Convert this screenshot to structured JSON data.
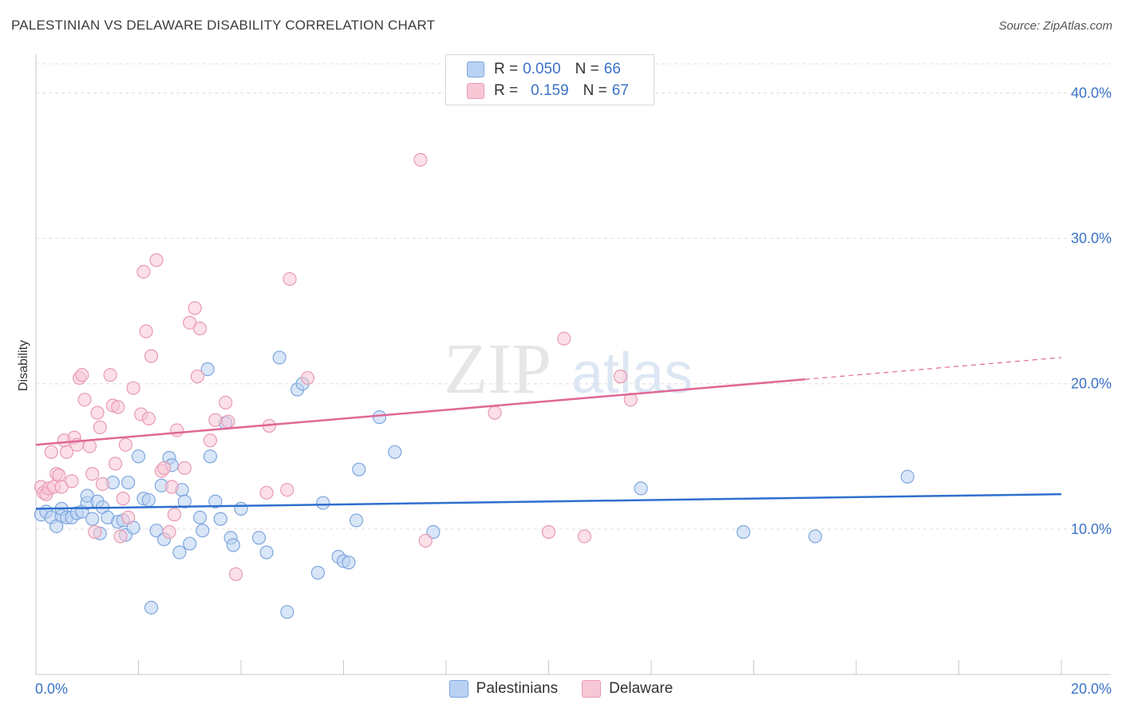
{
  "title": "PALESTINIAN VS DELAWARE DISABILITY CORRELATION CHART",
  "source": "Source: ZipAtlas.com",
  "watermark": {
    "zip": "ZIP",
    "atlas": "atlas"
  },
  "colors": {
    "blue": "#3a73c6",
    "blue_fill": "#b9d2f3",
    "blue_stroke": "#7ea6dd",
    "blue_line": "#2f6fce",
    "pink": "#e06796",
    "pink_fill": "#f7c7d6",
    "pink_stroke": "#e89ab5"
  },
  "legend": {
    "rows": [
      {
        "r_label": "R = ",
        "r_value": "0.050",
        "n_label": "N = ",
        "n_value": "66"
      },
      {
        "r_label": "R = ",
        "r_value": "0.159",
        "n_label": "N = ",
        "n_value": "67"
      }
    ]
  },
  "bottom_legend": [
    "Palestinians",
    "Delaware"
  ],
  "chart_data": {
    "type": "scatter",
    "title": "PALESTINIAN VS DELAWARE DISABILITY CORRELATION CHART",
    "xlabel": "",
    "ylabel": "Disability",
    "xlim": [
      0,
      20
    ],
    "ylim": [
      0,
      42
    ],
    "x_tick_labels": [
      "0.0%",
      "20.0%"
    ],
    "y_ticks": [
      10,
      20,
      30,
      40
    ],
    "y_tick_labels": [
      "10.0%",
      "20.0%",
      "30.0%",
      "40.0%"
    ],
    "series": [
      {
        "name": "Palestinians",
        "r": 0.05,
        "n": 66,
        "trend": {
          "x0": 0,
          "y0": 11.4,
          "x1": 20,
          "y1": 12.4,
          "dash_from": null
        },
        "points": [
          [
            0.1,
            11.0
          ],
          [
            0.2,
            11.2
          ],
          [
            0.3,
            10.8
          ],
          [
            0.4,
            10.2
          ],
          [
            0.5,
            10.9
          ],
          [
            0.5,
            11.4
          ],
          [
            0.6,
            10.8
          ],
          [
            0.7,
            10.8
          ],
          [
            0.8,
            11.1
          ],
          [
            0.9,
            11.2
          ],
          [
            1.0,
            11.8
          ],
          [
            1.0,
            12.3
          ],
          [
            1.1,
            10.7
          ],
          [
            1.2,
            11.9
          ],
          [
            1.25,
            9.7
          ],
          [
            1.3,
            11.5
          ],
          [
            1.4,
            10.8
          ],
          [
            1.5,
            13.2
          ],
          [
            1.6,
            10.5
          ],
          [
            1.7,
            10.6
          ],
          [
            1.75,
            9.6
          ],
          [
            1.8,
            13.2
          ],
          [
            1.9,
            10.1
          ],
          [
            2.0,
            15.0
          ],
          [
            2.1,
            12.1
          ],
          [
            2.2,
            12.0
          ],
          [
            2.25,
            4.6
          ],
          [
            2.35,
            9.9
          ],
          [
            2.45,
            13.0
          ],
          [
            2.5,
            9.3
          ],
          [
            2.6,
            14.9
          ],
          [
            2.65,
            14.4
          ],
          [
            2.8,
            8.4
          ],
          [
            2.85,
            12.7
          ],
          [
            2.9,
            11.9
          ],
          [
            3.0,
            9.0
          ],
          [
            3.2,
            10.8
          ],
          [
            3.25,
            9.9
          ],
          [
            3.35,
            21.0
          ],
          [
            3.4,
            15.0
          ],
          [
            3.5,
            11.9
          ],
          [
            3.6,
            10.7
          ],
          [
            3.7,
            17.3
          ],
          [
            3.8,
            9.4
          ],
          [
            3.85,
            8.9
          ],
          [
            4.0,
            11.4
          ],
          [
            4.35,
            9.4
          ],
          [
            4.5,
            8.4
          ],
          [
            4.75,
            21.8
          ],
          [
            4.9,
            4.3
          ],
          [
            5.1,
            19.6
          ],
          [
            5.2,
            20.0
          ],
          [
            5.5,
            7.0
          ],
          [
            5.6,
            11.8
          ],
          [
            5.9,
            8.1
          ],
          [
            6.0,
            7.8
          ],
          [
            6.1,
            7.7
          ],
          [
            6.25,
            10.6
          ],
          [
            6.3,
            14.1
          ],
          [
            6.7,
            17.7
          ],
          [
            7.0,
            15.3
          ],
          [
            7.75,
            9.8
          ],
          [
            11.8,
            12.8
          ],
          [
            13.8,
            9.8
          ],
          [
            15.2,
            9.5
          ],
          [
            17.0,
            13.6
          ]
        ]
      },
      {
        "name": "Delaware",
        "r": 0.159,
        "n": 67,
        "trend": {
          "x0": 0,
          "y0": 15.8,
          "x1": 20,
          "y1": 21.8,
          "dash_from": 15.0
        },
        "points": [
          [
            0.1,
            12.9
          ],
          [
            0.15,
            12.5
          ],
          [
            0.2,
            12.4
          ],
          [
            0.25,
            12.8
          ],
          [
            0.3,
            15.3
          ],
          [
            0.35,
            12.9
          ],
          [
            0.4,
            13.8
          ],
          [
            0.45,
            13.7
          ],
          [
            0.5,
            12.9
          ],
          [
            0.55,
            16.1
          ],
          [
            0.6,
            15.3
          ],
          [
            0.7,
            13.3
          ],
          [
            0.75,
            16.3
          ],
          [
            0.8,
            15.8
          ],
          [
            0.85,
            20.4
          ],
          [
            0.9,
            20.6
          ],
          [
            0.95,
            18.9
          ],
          [
            1.05,
            15.7
          ],
          [
            1.1,
            13.8
          ],
          [
            1.15,
            9.8
          ],
          [
            1.2,
            18.0
          ],
          [
            1.25,
            17.0
          ],
          [
            1.3,
            13.1
          ],
          [
            1.45,
            20.6
          ],
          [
            1.5,
            18.5
          ],
          [
            1.55,
            14.5
          ],
          [
            1.6,
            18.4
          ],
          [
            1.65,
            9.5
          ],
          [
            1.7,
            12.1
          ],
          [
            1.75,
            15.8
          ],
          [
            1.8,
            10.8
          ],
          [
            1.9,
            19.7
          ],
          [
            2.05,
            17.9
          ],
          [
            2.1,
            27.7
          ],
          [
            2.15,
            23.6
          ],
          [
            2.2,
            17.6
          ],
          [
            2.25,
            21.9
          ],
          [
            2.35,
            28.5
          ],
          [
            2.45,
            14.0
          ],
          [
            2.5,
            14.2
          ],
          [
            2.6,
            9.8
          ],
          [
            2.65,
            12.9
          ],
          [
            2.7,
            11.0
          ],
          [
            2.75,
            16.8
          ],
          [
            2.9,
            14.2
          ],
          [
            3.0,
            24.2
          ],
          [
            3.1,
            25.2
          ],
          [
            3.15,
            20.5
          ],
          [
            3.2,
            23.8
          ],
          [
            3.4,
            16.1
          ],
          [
            3.5,
            17.5
          ],
          [
            3.7,
            18.7
          ],
          [
            3.75,
            17.4
          ],
          [
            3.9,
            6.9
          ],
          [
            4.5,
            12.5
          ],
          [
            4.55,
            17.1
          ],
          [
            4.9,
            12.7
          ],
          [
            4.95,
            27.2
          ],
          [
            5.3,
            20.4
          ],
          [
            7.5,
            35.4
          ],
          [
            7.6,
            9.2
          ],
          [
            8.95,
            18.0
          ],
          [
            10.0,
            9.8
          ],
          [
            10.3,
            23.1
          ],
          [
            10.7,
            9.5
          ],
          [
            11.4,
            20.5
          ],
          [
            11.6,
            18.9
          ]
        ]
      }
    ]
  }
}
